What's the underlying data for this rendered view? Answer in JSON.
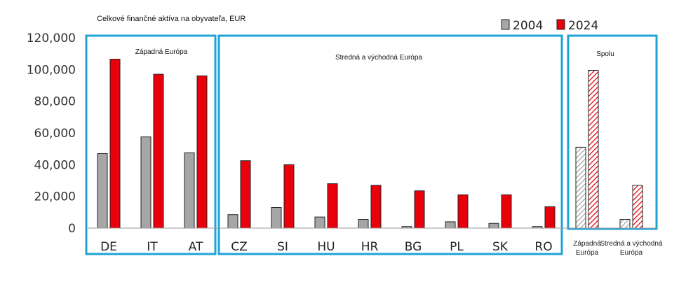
{
  "chart_data": {
    "type": "bar",
    "title": "Celkové finančné aktíva na obyvateľa, EUR",
    "ylim": [
      0,
      120000
    ],
    "yticks": [
      0,
      20000,
      40000,
      60000,
      80000,
      100000,
      120000
    ],
    "ytick_labels": [
      "0",
      "20,000",
      "40,000",
      "60,000",
      "80,000",
      "100,000",
      "120,000"
    ],
    "legend": [
      "2004",
      "2024"
    ],
    "legend_position": "top-right",
    "colors": {
      "2004": "#a6a6a6",
      "2024": "#e8000b",
      "frame": "#1fa3d6"
    },
    "groups": [
      {
        "label": "Západná Európa",
        "categories": [
          "DE",
          "IT",
          "AT"
        ],
        "series": [
          {
            "name": "2004",
            "values": [
              47000,
              57500,
              47500
            ]
          },
          {
            "name": "2024",
            "values": [
              106500,
              97000,
              96000
            ]
          }
        ]
      },
      {
        "label": "Stredná a východná Európa",
        "categories": [
          "CZ",
          "SI",
          "HU",
          "HR",
          "BG",
          "PL",
          "SK",
          "RO"
        ],
        "series": [
          {
            "name": "2004",
            "values": [
              8500,
              13000,
              7000,
              5500,
              1000,
              4000,
              3000,
              1000
            ]
          },
          {
            "name": "2024",
            "values": [
              42500,
              40000,
              28000,
              27000,
              23500,
              21000,
              21000,
              13500
            ]
          }
        ]
      },
      {
        "label": "Spolu",
        "categories": [
          "Západná Európa",
          "Stredná a východná Európa"
        ],
        "category_lines": [
          [
            "Západná",
            "Európa"
          ],
          [
            "Stredná a východná",
            "Európa"
          ]
        ],
        "hatched": true,
        "series": [
          {
            "name": "2004",
            "values": [
              51000,
              5500
            ]
          },
          {
            "name": "2024",
            "values": [
              99500,
              27000
            ]
          }
        ]
      }
    ]
  }
}
